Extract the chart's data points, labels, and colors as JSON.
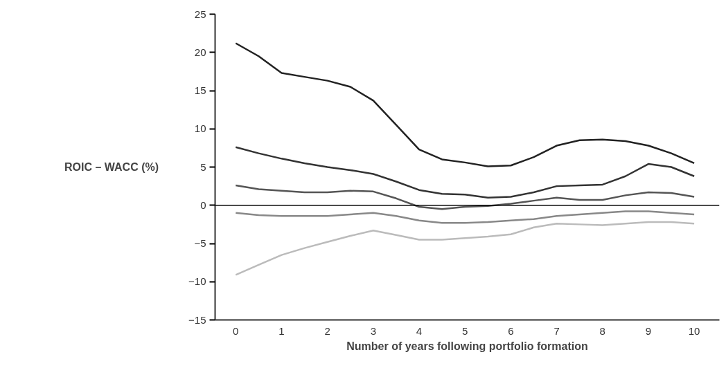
{
  "chart_data": {
    "type": "line",
    "xlabel": "Number of years following portfolio formation",
    "ylabel": "ROIC – WACC (%)",
    "x": [
      0,
      0.5,
      1,
      1.5,
      2,
      2.5,
      3,
      3.5,
      4,
      4.5,
      5,
      5.5,
      6,
      6.5,
      7,
      7.5,
      8,
      8.5,
      9,
      9.5,
      10
    ],
    "series": [
      {
        "color": "#222222",
        "values": [
          21.2,
          19.5,
          17.3,
          16.8,
          16.3,
          15.5,
          13.7,
          10.5,
          7.3,
          6.0,
          5.6,
          5.1,
          5.2,
          6.3,
          7.8,
          8.5,
          8.6,
          8.4,
          7.8,
          6.8,
          5.5
        ]
      },
      {
        "color": "#333333",
        "values": [
          7.6,
          6.8,
          6.1,
          5.5,
          5.0,
          4.6,
          4.1,
          3.1,
          2.0,
          1.5,
          1.4,
          1.0,
          1.1,
          1.7,
          2.5,
          2.6,
          2.7,
          3.8,
          5.4,
          5.0,
          3.8
        ]
      },
      {
        "color": "#555555",
        "values": [
          2.6,
          2.1,
          1.9,
          1.7,
          1.7,
          1.9,
          1.8,
          0.9,
          -0.2,
          -0.5,
          -0.2,
          -0.1,
          0.2,
          0.6,
          1.0,
          0.7,
          0.7,
          1.3,
          1.7,
          1.6,
          1.1
        ]
      },
      {
        "color": "#888888",
        "values": [
          -1.0,
          -1.3,
          -1.4,
          -1.4,
          -1.4,
          -1.2,
          -1.0,
          -1.4,
          -2.0,
          -2.3,
          -2.3,
          -2.2,
          -2.0,
          -1.8,
          -1.4,
          -1.2,
          -1.0,
          -0.8,
          -0.8,
          -1.0,
          -1.2
        ]
      },
      {
        "color": "#bbbbbb",
        "values": [
          -9.1,
          -7.8,
          -6.5,
          -5.6,
          -4.8,
          -4.0,
          -3.3,
          -3.9,
          -4.5,
          -4.5,
          -4.3,
          -4.1,
          -3.8,
          -2.9,
          -2.4,
          -2.5,
          -2.6,
          -2.4,
          -2.2,
          -2.2,
          -2.4
        ]
      }
    ],
    "xlim": [
      -0.45,
      10.55
    ],
    "xticks": [
      0,
      1,
      2,
      3,
      4,
      5,
      6,
      7,
      8,
      9,
      10
    ],
    "ylim": [
      -15,
      25
    ],
    "yticks": [
      -15,
      -10,
      -5,
      0,
      5,
      10,
      15,
      20,
      25
    ],
    "ref_lines": [
      {
        "axis": "y",
        "value": 0,
        "color": "#000000"
      }
    ],
    "grid": false,
    "marker": "none",
    "line_style": "solid"
  }
}
